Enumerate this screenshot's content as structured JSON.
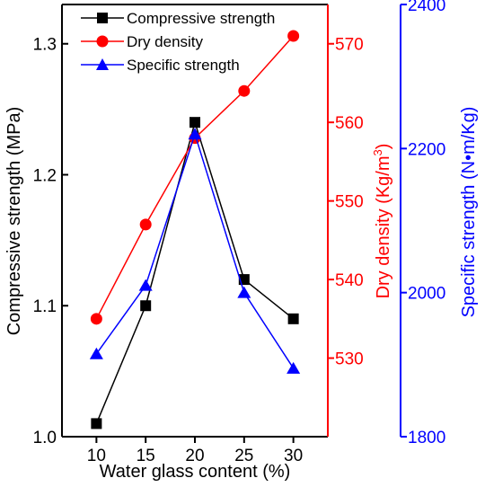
{
  "chart_data": {
    "type": "line",
    "x": [
      10,
      15,
      20,
      25,
      30
    ],
    "xlabel": "Water glass content (%)",
    "xlim": [
      6.5,
      33.5
    ],
    "xticks": [
      "10",
      "15",
      "20",
      "25",
      "30"
    ],
    "axes": {
      "left": {
        "label": "Compressive strength (MPa)",
        "ylim": [
          1.0,
          1.33
        ],
        "ticks": [
          "1.0",
          "1.1",
          "1.2",
          "1.3"
        ],
        "color": "#000000"
      },
      "right1": {
        "label_main": "Dry density (Kg/m",
        "label_sup": "3",
        "label_close": ")",
        "ylim": [
          520,
          575
        ],
        "ticks": [
          "530",
          "540",
          "550",
          "560",
          "570"
        ],
        "color": "#ff0000"
      },
      "right2": {
        "label": "Specific strength (N•m/Kg)",
        "ylim": [
          1800,
          2400
        ],
        "ticks": [
          "1800",
          "2000",
          "2200",
          "2400"
        ],
        "color": "#0000ff"
      }
    },
    "series": [
      {
        "name": "Compressive strength",
        "axis": "left",
        "marker": "square",
        "color": "#000000",
        "values": [
          1.01,
          1.1,
          1.24,
          1.12,
          1.09
        ]
      },
      {
        "name": "Dry density",
        "axis": "right1",
        "marker": "circle",
        "color": "#ff0000",
        "values": [
          535,
          547,
          558,
          564,
          571
        ]
      },
      {
        "name": "Specific strength",
        "axis": "right2",
        "marker": "triangle",
        "color": "#0000ff",
        "values": [
          1915,
          2010,
          2220,
          2000,
          1895
        ]
      }
    ],
    "legend": "top-left",
    "grid": false
  }
}
